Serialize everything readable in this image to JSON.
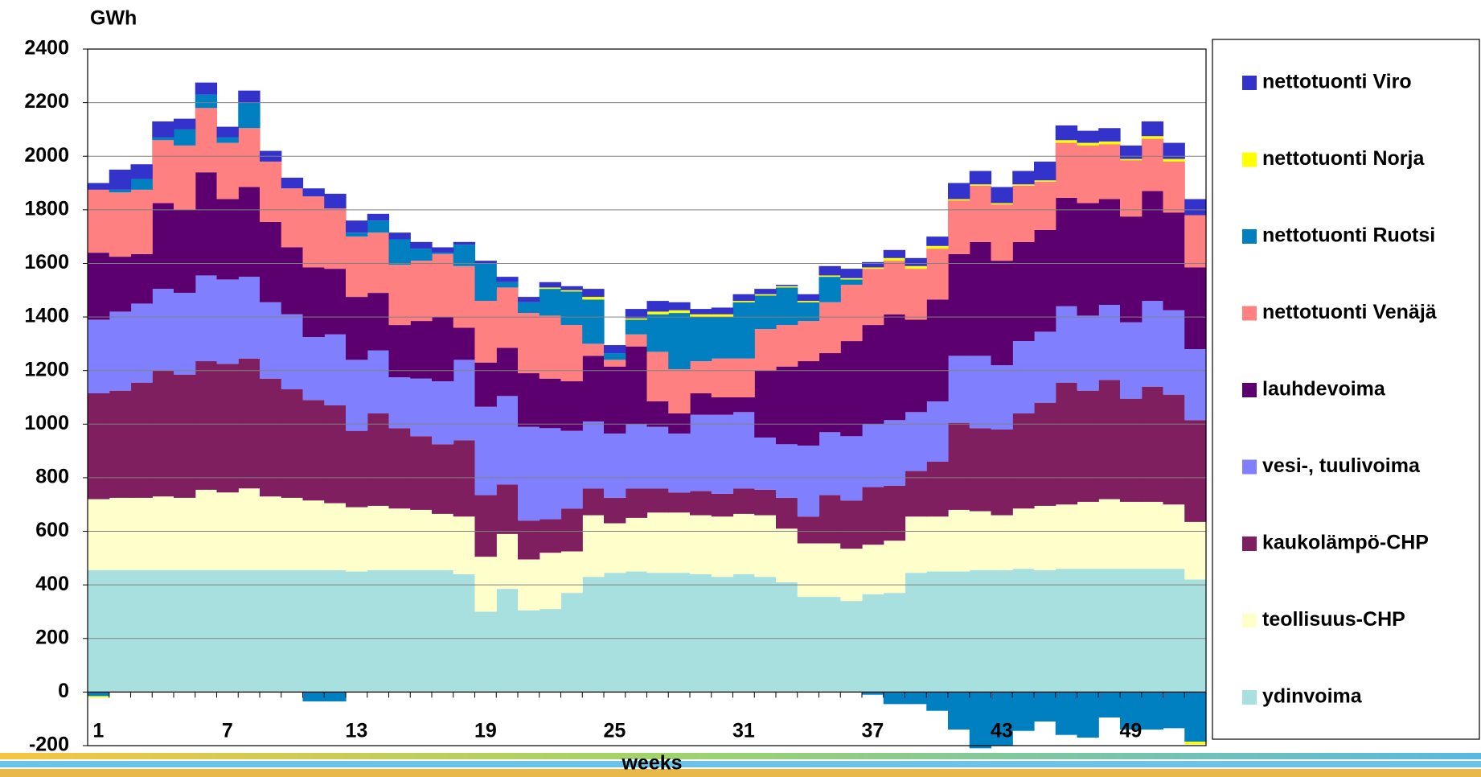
{
  "chart_data": {
    "type": "stacked_area_step",
    "y_label": "GWh",
    "x_label": "weeks",
    "categories": [
      "1",
      null,
      null,
      null,
      null,
      null,
      "7",
      null,
      null,
      null,
      null,
      null,
      "13",
      null,
      null,
      null,
      null,
      null,
      "19",
      null,
      null,
      null,
      null,
      null,
      "25",
      null,
      null,
      null,
      null,
      null,
      "31",
      null,
      null,
      null,
      null,
      null,
      "37",
      null,
      null,
      null,
      null,
      null,
      "43",
      null,
      null,
      null,
      null,
      null,
      "49",
      null,
      null,
      null
    ],
    "ylim": [
      -200,
      2400
    ],
    "yticks": [
      -200,
      0,
      200,
      400,
      600,
      800,
      1000,
      1200,
      1400,
      1600,
      1800,
      2000,
      2200,
      2400
    ],
    "grid": true,
    "legend": "right",
    "series": [
      {
        "name": "ydinvoima",
        "color": "#a8e0e0",
        "values": [
          455,
          455,
          455,
          455,
          455,
          455,
          455,
          455,
          455,
          455,
          455,
          455,
          450,
          455,
          455,
          455,
          455,
          440,
          300,
          385,
          305,
          310,
          370,
          430,
          445,
          450,
          445,
          445,
          440,
          430,
          440,
          430,
          410,
          355,
          355,
          340,
          365,
          370,
          445,
          450,
          450,
          455,
          455,
          460,
          455,
          460,
          460,
          460,
          460,
          460,
          460,
          420
        ]
      },
      {
        "name": "teollisuus-CHP",
        "color": "#ffffcc",
        "values": [
          265,
          270,
          270,
          275,
          270,
          300,
          290,
          305,
          275,
          270,
          260,
          250,
          240,
          240,
          230,
          225,
          210,
          215,
          205,
          205,
          190,
          210,
          155,
          230,
          185,
          200,
          225,
          225,
          220,
          225,
          225,
          230,
          200,
          200,
          200,
          195,
          185,
          195,
          210,
          205,
          230,
          220,
          205,
          225,
          240,
          240,
          250,
          260,
          250,
          250,
          240,
          215
        ]
      },
      {
        "name": "kaukolämpö-CHP",
        "color": "#7f1f5f",
        "values": [
          395,
          400,
          430,
          470,
          460,
          480,
          480,
          485,
          440,
          405,
          375,
          365,
          285,
          345,
          300,
          275,
          260,
          285,
          230,
          185,
          145,
          125,
          160,
          100,
          95,
          110,
          90,
          75,
          90,
          85,
          95,
          95,
          115,
          100,
          180,
          180,
          215,
          205,
          170,
          205,
          325,
          310,
          320,
          355,
          385,
          455,
          415,
          445,
          385,
          430,
          410,
          380
        ]
      },
      {
        "name": "vesi-, tuulivoima",
        "color": "#8080ff",
        "values": [
          275,
          295,
          295,
          305,
          305,
          320,
          315,
          305,
          285,
          280,
          235,
          265,
          265,
          235,
          190,
          215,
          235,
          300,
          330,
          330,
          350,
          340,
          290,
          250,
          240,
          240,
          230,
          220,
          285,
          295,
          285,
          195,
          200,
          265,
          235,
          240,
          235,
          245,
          220,
          225,
          250,
          270,
          240,
          270,
          265,
          285,
          280,
          280,
          285,
          320,
          315,
          265
        ]
      },
      {
        "name": "lauhdevoima",
        "color": "#5c0070",
        "values": [
          250,
          205,
          185,
          320,
          310,
          385,
          300,
          335,
          300,
          250,
          260,
          245,
          235,
          215,
          195,
          215,
          240,
          120,
          165,
          180,
          200,
          185,
          185,
          245,
          250,
          290,
          95,
          75,
          80,
          65,
          55,
          250,
          290,
          315,
          295,
          355,
          370,
          395,
          345,
          380,
          380,
          425,
          390,
          370,
          380,
          405,
          420,
          395,
          395,
          410,
          365,
          305
        ]
      },
      {
        "name": "nettotuonti Venäjä",
        "color": "#ff8080",
        "values": [
          235,
          240,
          240,
          235,
          240,
          240,
          210,
          220,
          225,
          220,
          265,
          225,
          225,
          225,
          225,
          225,
          235,
          230,
          230,
          225,
          225,
          235,
          210,
          45,
          25,
          45,
          185,
          165,
          120,
          145,
          145,
          155,
          155,
          150,
          190,
          210,
          210,
          200,
          190,
          190,
          200,
          210,
          210,
          210,
          180,
          205,
          215,
          205,
          210,
          195,
          190,
          195
        ]
      },
      {
        "name": "nettotuonti Ruotsi",
        "color": "#0080c0",
        "values": [
          -15,
          10,
          40,
          10,
          60,
          50,
          20,
          95,
          0,
          0,
          -35,
          -35,
          15,
          45,
          95,
          45,
          5,
          80,
          140,
          20,
          40,
          100,
          125,
          165,
          25,
          55,
          140,
          210,
          165,
          155,
          210,
          125,
          140,
          70,
          95,
          20,
          -10,
          -45,
          -45,
          -70,
          -140,
          -210,
          -200,
          -145,
          -110,
          -160,
          -170,
          -95,
          -140,
          -140,
          -135,
          -185
        ]
      },
      {
        "name": "nettotuonti Norja",
        "color": "#ffff00",
        "values": [
          -5,
          0,
          0,
          0,
          0,
          0,
          0,
          0,
          0,
          0,
          0,
          0,
          0,
          0,
          0,
          0,
          0,
          0,
          0,
          0,
          0,
          5,
          5,
          10,
          0,
          5,
          10,
          10,
          10,
          10,
          5,
          5,
          5,
          5,
          5,
          5,
          5,
          10,
          10,
          10,
          5,
          5,
          5,
          5,
          5,
          10,
          10,
          10,
          5,
          10,
          10,
          -10
        ]
      },
      {
        "name": "nettotuonti Viro",
        "color": "#3333cc",
        "values": [
          25,
          75,
          55,
          60,
          40,
          45,
          40,
          45,
          40,
          40,
          30,
          55,
          45,
          25,
          25,
          25,
          20,
          10,
          10,
          20,
          20,
          20,
          15,
          30,
          30,
          35,
          40,
          30,
          20,
          25,
          25,
          20,
          5,
          25,
          35,
          35,
          20,
          30,
          30,
          35,
          60,
          50,
          60,
          50,
          70,
          55,
          45,
          50,
          50,
          55,
          60,
          60
        ]
      }
    ]
  }
}
